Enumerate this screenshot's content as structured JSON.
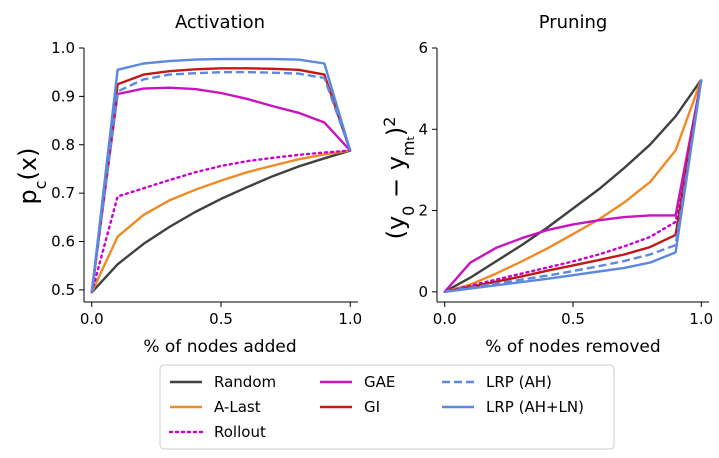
{
  "chart_data": [
    {
      "type": "line",
      "title": "Activation",
      "xlabel": "% of nodes added",
      "ylabel": "p_c(x)",
      "xlim": [
        -0.03,
        1.03
      ],
      "ylim": [
        0.475,
        1.0
      ],
      "x": [
        0.0,
        0.1,
        0.2,
        0.3,
        0.4,
        0.5,
        0.6,
        0.7,
        0.8,
        0.9,
        1.0
      ],
      "xticks": [
        0.0,
        0.5,
        1.0
      ],
      "xtick_labels": [
        "0.0",
        "0.5",
        "1.0"
      ],
      "yticks": [
        0.5,
        0.6,
        0.7,
        0.8,
        0.9,
        1.0
      ],
      "ytick_labels": [
        "0.5",
        "0.6",
        "0.7",
        "0.8",
        "0.9",
        "1.0"
      ],
      "series": [
        {
          "name": "Random",
          "values": [
            0.495,
            0.553,
            0.595,
            0.63,
            0.661,
            0.688,
            0.712,
            0.735,
            0.755,
            0.772,
            0.788
          ]
        },
        {
          "name": "A-Last",
          "values": [
            0.495,
            0.61,
            0.655,
            0.685,
            0.707,
            0.726,
            0.743,
            0.757,
            0.77,
            0.78,
            0.788
          ]
        },
        {
          "name": "Rollout",
          "values": [
            0.495,
            0.693,
            0.71,
            0.727,
            0.743,
            0.756,
            0.766,
            0.773,
            0.779,
            0.784,
            0.788
          ]
        },
        {
          "name": "GAE",
          "values": [
            0.495,
            0.905,
            0.916,
            0.918,
            0.915,
            0.907,
            0.895,
            0.88,
            0.866,
            0.846,
            0.788
          ]
        },
        {
          "name": "GI",
          "values": [
            0.495,
            0.925,
            0.945,
            0.952,
            0.956,
            0.958,
            0.958,
            0.957,
            0.955,
            0.945,
            0.788
          ]
        },
        {
          "name": "LRP (AH)",
          "values": [
            0.495,
            0.91,
            0.935,
            0.945,
            0.948,
            0.95,
            0.95,
            0.949,
            0.947,
            0.938,
            0.788
          ]
        },
        {
          "name": "LRP (AH+LN)",
          "values": [
            0.495,
            0.955,
            0.968,
            0.973,
            0.976,
            0.977,
            0.977,
            0.977,
            0.976,
            0.968,
            0.788
          ]
        }
      ]
    },
    {
      "type": "line",
      "title": "Pruning",
      "xlabel": "% of nodes removed",
      "ylabel": "(y_0 − y_m_t)^2",
      "xlim": [
        -0.03,
        1.03
      ],
      "ylim": [
        -0.25,
        6.0
      ],
      "x": [
        0.0,
        0.1,
        0.2,
        0.3,
        0.4,
        0.5,
        0.6,
        0.7,
        0.8,
        0.9,
        1.0
      ],
      "xticks": [
        0.0,
        0.5,
        1.0
      ],
      "xtick_labels": [
        "0.0",
        "0.5",
        "1.0"
      ],
      "yticks": [
        0,
        2,
        4,
        6
      ],
      "ytick_labels": [
        "0",
        "2",
        "4",
        "6"
      ],
      "series": [
        {
          "name": "Random",
          "values": [
            0.0,
            0.35,
            0.75,
            1.15,
            1.58,
            2.05,
            2.52,
            3.05,
            3.62,
            4.32,
            5.22
          ]
        },
        {
          "name": "A-Last",
          "values": [
            0.0,
            0.18,
            0.45,
            0.75,
            1.07,
            1.42,
            1.78,
            2.2,
            2.7,
            3.48,
            5.22
          ]
        },
        {
          "name": "Rollout",
          "values": [
            0.0,
            0.15,
            0.3,
            0.45,
            0.6,
            0.75,
            0.92,
            1.12,
            1.35,
            1.72,
            5.22
          ]
        },
        {
          "name": "GAE",
          "values": [
            0.0,
            0.72,
            1.08,
            1.32,
            1.52,
            1.66,
            1.76,
            1.84,
            1.88,
            1.88,
            5.22
          ]
        },
        {
          "name": "GI",
          "values": [
            0.0,
            0.12,
            0.25,
            0.38,
            0.52,
            0.65,
            0.78,
            0.92,
            1.1,
            1.4,
            5.22
          ]
        },
        {
          "name": "LRP (AH)",
          "values": [
            0.0,
            0.1,
            0.2,
            0.3,
            0.4,
            0.51,
            0.63,
            0.76,
            0.92,
            1.15,
            5.22
          ]
        },
        {
          "name": "LRP (AH+LN)",
          "values": [
            0.0,
            0.08,
            0.16,
            0.24,
            0.32,
            0.41,
            0.5,
            0.59,
            0.72,
            0.97,
            5.22
          ]
        }
      ]
    }
  ],
  "series_styles": [
    {
      "name": "Random",
      "color": "#404040",
      "dash": "solid"
    },
    {
      "name": "A-Last",
      "color": "#f08a24",
      "dash": "solid"
    },
    {
      "name": "Rollout",
      "color": "#c800d0",
      "dash": "dotted"
    },
    {
      "name": "GAE",
      "color": "#c814c0",
      "dash": "solid"
    },
    {
      "name": "GI",
      "color": "#c01818",
      "dash": "solid"
    },
    {
      "name": "LRP (AH)",
      "color": "#5b88e0",
      "dash": "dashed"
    },
    {
      "name": "LRP (AH+LN)",
      "color": "#5b88e0",
      "dash": "solid"
    }
  ],
  "legend": {
    "placement": "bottom-center",
    "columns": [
      [
        "Random",
        "A-Last",
        "Rollout"
      ],
      [
        "GAE",
        "GI"
      ],
      [
        "LRP (AH)",
        "LRP (AH+LN)"
      ]
    ]
  }
}
